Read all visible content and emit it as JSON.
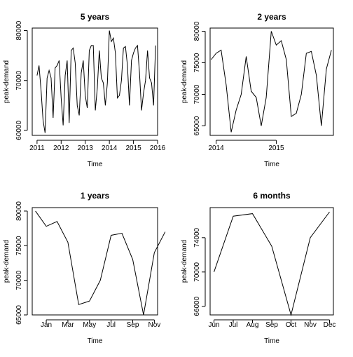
{
  "chart_data": [
    {
      "type": "line",
      "title": "5 years",
      "xlabel": "Time",
      "ylabel": "peak-demand",
      "xlim": [
        2010.8,
        2016.0
      ],
      "ylim": [
        59000,
        80500
      ],
      "x_ticks": [
        2011,
        2012,
        2013,
        2014,
        2015,
        2016
      ],
      "x_tick_labels": [
        "2011",
        "2012",
        "2013",
        "2014",
        "2015",
        "2016"
      ],
      "y_ticks": [
        60000,
        70000,
        80000
      ],
      "y_tick_labels": [
        "60000",
        "70000",
        "80000"
      ],
      "x": [
        2011.0,
        2011.083,
        2011.167,
        2011.25,
        2011.333,
        2011.417,
        2011.5,
        2011.583,
        2011.667,
        2011.75,
        2011.833,
        2011.917,
        2012.0,
        2012.083,
        2012.167,
        2012.25,
        2012.333,
        2012.417,
        2012.5,
        2012.583,
        2012.667,
        2012.75,
        2012.833,
        2012.917,
        2013.0,
        2013.083,
        2013.167,
        2013.25,
        2013.333,
        2013.417,
        2013.5,
        2013.583,
        2013.667,
        2013.75,
        2013.833,
        2013.917,
        2014.0,
        2014.083,
        2014.167,
        2014.25,
        2014.333,
        2014.417,
        2014.5,
        2014.583,
        2014.667,
        2014.75,
        2014.833,
        2014.917,
        2015.0,
        2015.083,
        2015.167,
        2015.25,
        2015.333,
        2015.417,
        2015.5,
        2015.583,
        2015.667,
        2015.75,
        2015.833,
        2015.917
      ],
      "values": [
        71000,
        73000,
        68000,
        62000,
        59500,
        70500,
        72000,
        70500,
        62500,
        72500,
        73000,
        74000,
        66500,
        61000,
        71000,
        74000,
        61500,
        76000,
        76500,
        73500,
        65000,
        63000,
        71500,
        74000,
        67000,
        64500,
        76000,
        77000,
        77000,
        64000,
        68500,
        76000,
        70500,
        69500,
        65000,
        69500,
        80000,
        77800,
        78500,
        75500,
        66500,
        67000,
        70000,
        76500,
        76800,
        73000,
        65000,
        74000,
        75500,
        76500,
        77000,
        71500,
        64000,
        67500,
        70000,
        76000,
        70500,
        69500,
        65000,
        77000
      ]
    },
    {
      "type": "line",
      "title": "2 years",
      "xlabel": "Time",
      "ylabel": "peak-demand",
      "xlim": [
        2013.9,
        2015.95
      ],
      "ylim": [
        63500,
        80500
      ],
      "x_ticks": [
        2014,
        2015
      ],
      "x_tick_labels": [
        "2014",
        "2015"
      ],
      "y_ticks": [
        65000,
        70000,
        75000,
        80000
      ],
      "y_tick_labels": [
        "65000",
        "70000",
        "75000",
        "80000"
      ],
      "x": [
        2013.917,
        2014.0,
        2014.083,
        2014.167,
        2014.25,
        2014.333,
        2014.417,
        2014.5,
        2014.583,
        2014.667,
        2014.75,
        2014.833,
        2014.917,
        2015.0,
        2015.083,
        2015.167,
        2015.25,
        2015.333,
        2015.417,
        2015.5,
        2015.583,
        2015.667,
        2015.75,
        2015.833,
        2015.917
      ],
      "values": [
        75500,
        76500,
        77000,
        71500,
        64000,
        67500,
        70000,
        76000,
        70500,
        69500,
        65000,
        69500,
        80000,
        77800,
        78500,
        75500,
        66500,
        67000,
        70000,
        76500,
        76800,
        73000,
        65000,
        74000,
        77000
      ]
    },
    {
      "type": "line",
      "title": "1 years",
      "xlabel": "Time",
      "ylabel": "peak-demand",
      "xlim": [
        0.7,
        12.3
      ],
      "ylim": [
        65000,
        80500
      ],
      "x_ticks": [
        2,
        4,
        6,
        8,
        10,
        12
      ],
      "x_tick_labels": [
        "Jan",
        "Mar",
        "May",
        "Jul",
        "Sep",
        "Nov"
      ],
      "y_ticks": [
        65000,
        70000,
        75000,
        80000
      ],
      "y_tick_labels": [
        "65000",
        "70000",
        "75000",
        "80000"
      ],
      "x": [
        1,
        2,
        3,
        4,
        5,
        6,
        7,
        8,
        9,
        10,
        11,
        12,
        13
      ],
      "values": [
        80000,
        77800,
        78500,
        75500,
        66500,
        67000,
        70000,
        76500,
        76800,
        73000,
        65000,
        74000,
        77000
      ]
    },
    {
      "type": "line",
      "title": "6 months",
      "xlabel": "Time",
      "ylabel": "peak-demand",
      "xlim": [
        0.8,
        7.2
      ],
      "ylim": [
        65000,
        77500
      ],
      "x_ticks": [
        1,
        2,
        3,
        4,
        5,
        6,
        7
      ],
      "x_tick_labels": [
        "Jun",
        "Jul",
        "Aug",
        "Sep",
        "Oct",
        "Nov",
        "Dec"
      ],
      "y_ticks": [
        66000,
        70000,
        74000
      ],
      "y_tick_labels": [
        "66000",
        "70000",
        "74000"
      ],
      "x": [
        1,
        2,
        3,
        4,
        5,
        6,
        7
      ],
      "values": [
        70000,
        76500,
        76800,
        73000,
        65000,
        74000,
        77000
      ]
    }
  ]
}
